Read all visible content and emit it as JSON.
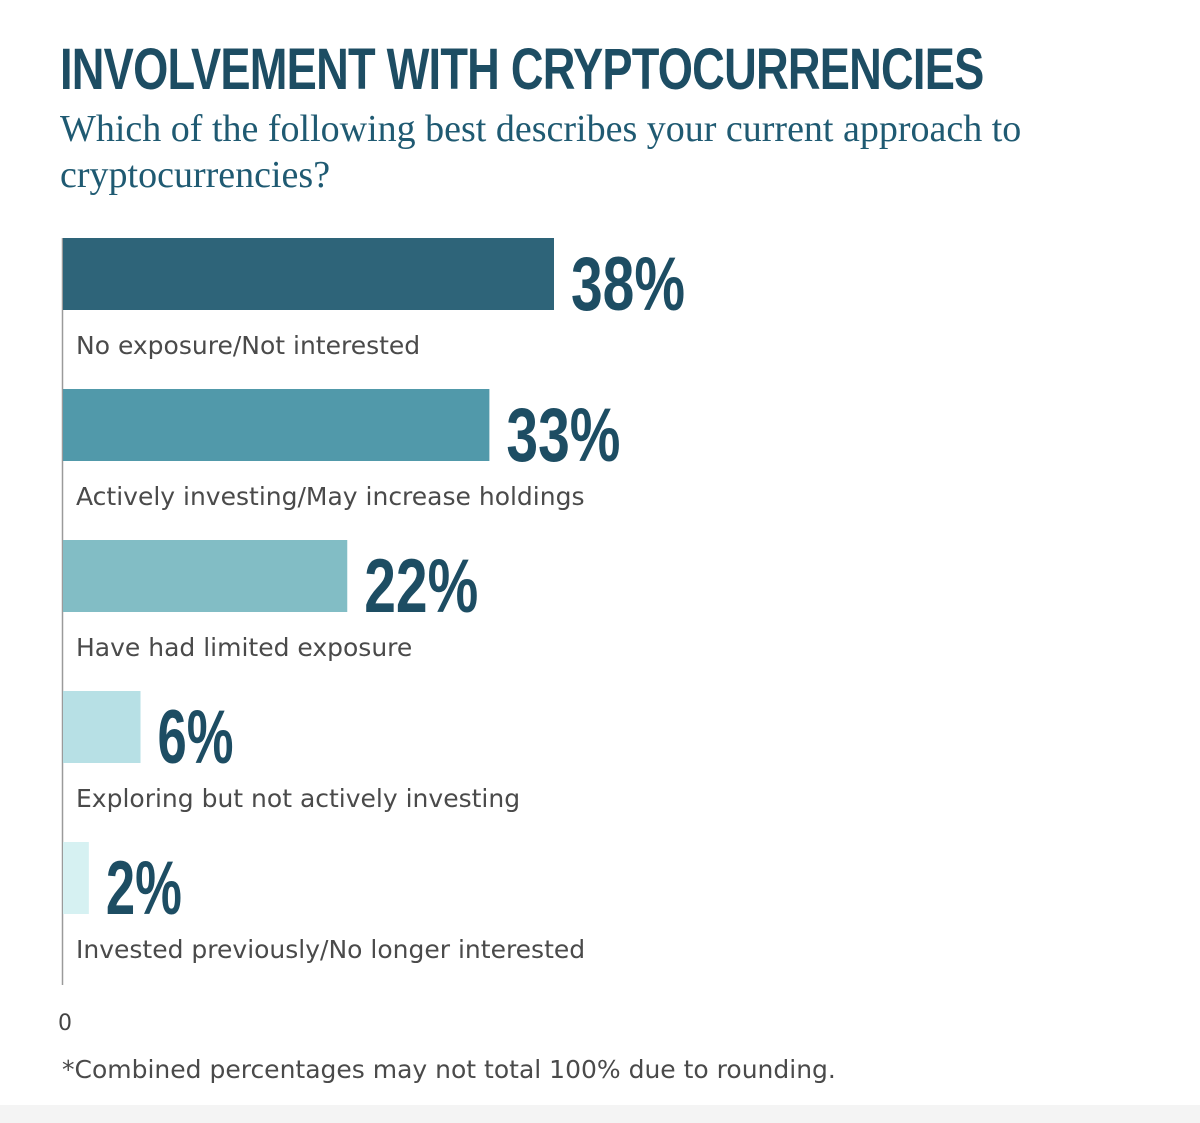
{
  "chart_data": {
    "type": "bar",
    "orientation": "horizontal",
    "title": "INVOLVEMENT WITH CRYPTOCURRENCIES",
    "subtitle": "Which of the following best describes your current approach to cryptocurrencies?",
    "categories": [
      "No exposure/Not interested",
      "Actively investing/May increase holdings",
      "Have had limited exposure",
      "Exploring but not actively investing",
      "Invested previously/No longer interested"
    ],
    "values": [
      38,
      33,
      22,
      6,
      2
    ],
    "value_labels": [
      "38%",
      "33%",
      "22%",
      "6%",
      "2%"
    ],
    "bar_colors": [
      "#2e6479",
      "#5199aa",
      "#82bdc5",
      "#b7e0e5",
      "#d6f1f2"
    ],
    "value_label_color": "#1d4d63",
    "axis_tick_label": "0",
    "xlim": [
      0,
      38
    ],
    "grid": false,
    "footnote": "*Combined percentages may not total 100% due to rounding."
  }
}
